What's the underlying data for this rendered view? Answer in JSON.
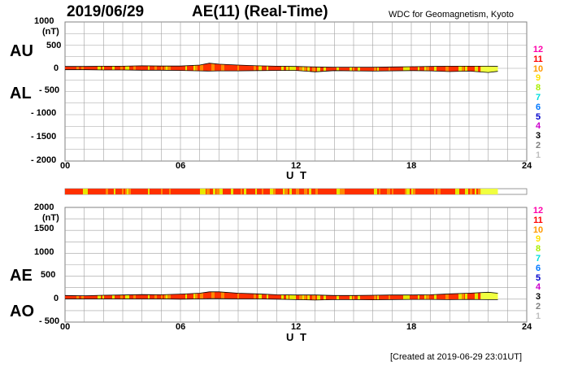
{
  "header": {
    "date": "2019/06/29",
    "title": "AE(11) (Real-Time)",
    "org": "WDC for Geomagnetism, Kyoto"
  },
  "footer": "[Created at 2019-06-29 23:01UT]",
  "colors": {
    "frame": "#808080",
    "grid": "#a0a0a0",
    "main_fill": "#ff3000",
    "highlight_orange": "#ff8a00",
    "highlight_yellow": "#e8e800",
    "end_fill": "#f0ff40"
  },
  "legend": {
    "levels": [
      {
        "label": "12",
        "color": "#ff00aa"
      },
      {
        "label": "11",
        "color": "#ff0000"
      },
      {
        "label": "10",
        "color": "#ff9900"
      },
      {
        "label": "9",
        "color": "#ffe000"
      },
      {
        "label": "8",
        "color": "#aaee00"
      },
      {
        "label": "7",
        "color": "#00dddd"
      },
      {
        "label": "6",
        "color": "#0077ff"
      },
      {
        "label": "5",
        "color": "#0000cc"
      },
      {
        "label": "4",
        "color": "#cc00cc"
      },
      {
        "label": "3",
        "color": "#000000"
      },
      {
        "label": "2",
        "color": "#808080"
      },
      {
        "label": "1",
        "color": "#c0c0c0"
      }
    ]
  },
  "chart_data": [
    {
      "type": "area",
      "panel": "AU/AL",
      "labels": {
        "upper": "AU",
        "lower": "AL"
      },
      "unit": "(nT)",
      "xlabel": "U T",
      "ylim": [
        -2000,
        1000
      ],
      "yticks": [
        "1000",
        "500",
        "0",
        "- 500",
        "- 1000",
        "- 1500",
        "- 2000"
      ],
      "xlim": [
        0,
        24
      ],
      "xticks": [
        "00",
        "06",
        "12",
        "18",
        "24"
      ],
      "grid": true,
      "x": [
        0,
        1,
        2,
        3,
        4,
        5,
        6,
        7,
        7.5,
        8,
        9,
        10,
        11,
        12,
        13,
        14,
        15,
        16,
        17,
        18,
        19,
        20,
        21,
        22,
        22.5
      ],
      "series": [
        {
          "values": [
            40,
            40,
            45,
            45,
            55,
            50,
            50,
            70,
            110,
            90,
            70,
            55,
            45,
            40,
            30,
            25,
            25,
            25,
            30,
            35,
            40,
            45,
            45,
            45,
            40
          ]
        },
        {
          "values": [
            -30,
            -30,
            -35,
            -35,
            -40,
            -40,
            -45,
            -55,
            -60,
            -55,
            -55,
            -50,
            -45,
            -45,
            -75,
            -50,
            -55,
            -60,
            -55,
            -50,
            -55,
            -70,
            -60,
            -90,
            -65
          ]
        }
      ]
    },
    {
      "type": "area",
      "panel": "AE/AO",
      "labels": {
        "upper": "AE",
        "lower": "AO"
      },
      "unit": "(nT)",
      "xlabel": "U T",
      "ylim": [
        -500,
        2000
      ],
      "yticks": [
        "2000",
        "1500",
        "1000",
        "500",
        "0",
        "- 500"
      ],
      "xlim": [
        0,
        24
      ],
      "xticks": [
        "00",
        "06",
        "12",
        "18",
        "24"
      ],
      "grid": true,
      "x": [
        0,
        1,
        2,
        3,
        4,
        5,
        6,
        7,
        7.5,
        8,
        9,
        10,
        11,
        12,
        13,
        14,
        15,
        16,
        17,
        18,
        19,
        20,
        21,
        22,
        22.5
      ],
      "series": [
        {
          "values": [
            80,
            75,
            85,
            90,
            100,
            95,
            110,
            130,
            160,
            160,
            130,
            115,
            95,
            90,
            90,
            80,
            80,
            85,
            90,
            90,
            95,
            115,
            130,
            150,
            130
          ]
        },
        {
          "values": [
            5,
            5,
            5,
            5,
            5,
            5,
            0,
            5,
            10,
            10,
            5,
            5,
            0,
            -10,
            -20,
            -10,
            -10,
            -15,
            -10,
            -5,
            -5,
            -10,
            -5,
            -10,
            -10
          ]
        }
      ]
    }
  ]
}
